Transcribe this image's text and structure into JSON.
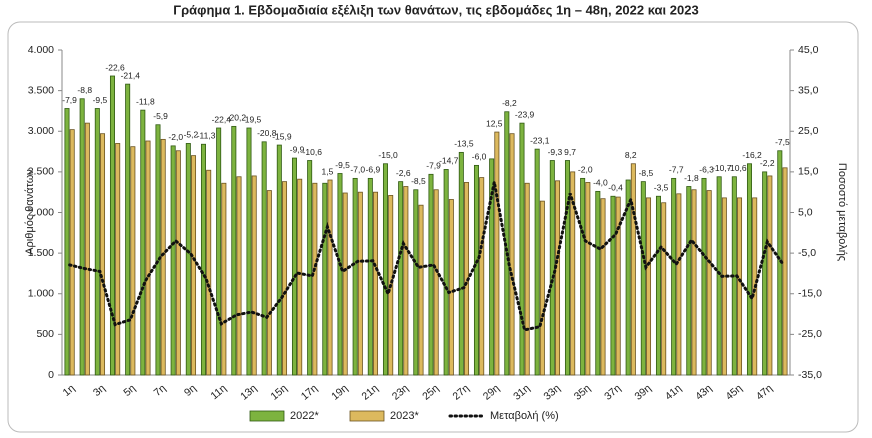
{
  "chart_data": {
    "type": "bar",
    "title": "Γράφημα 1.  Εβδομαδιαία εξέλιξη των θανάτων, τις εβδομάδες 1η – 48η, 2022 και 2023",
    "y_label": "Αριθμός θανάτων",
    "y2_label": "Ποσοστό μεταβολής",
    "categories": [
      "1η",
      null,
      "3η",
      null,
      "5η",
      null,
      "7η",
      null,
      "9η",
      null,
      "11η",
      null,
      "13η",
      null,
      "15η",
      null,
      "17η",
      null,
      "19η",
      null,
      "21η",
      null,
      "23η",
      null,
      "25η",
      null,
      "27η",
      null,
      "29η",
      null,
      "31η",
      null,
      "33η",
      null,
      "35η",
      null,
      "37η",
      null,
      "39η",
      null,
      "41η",
      null,
      "43η",
      null,
      "45η",
      null,
      "47η",
      null
    ],
    "series": [
      {
        "name": "2022*",
        "color": "#7db33f",
        "stroke": "#2f5a12",
        "values": [
          3280,
          3400,
          3280,
          3680,
          3580,
          3260,
          3080,
          2820,
          2850,
          2840,
          3040,
          3060,
          3040,
          2870,
          2830,
          2670,
          2640,
          2360,
          2480,
          2420,
          2420,
          2600,
          2380,
          2280,
          2470,
          2530,
          2740,
          2580,
          2660,
          3240,
          3100,
          2780,
          2640,
          2640,
          2420,
          2260,
          2200,
          2400,
          2380,
          2200,
          2420,
          2320,
          2420,
          2440,
          2440,
          2600,
          2500,
          2760
        ]
      },
      {
        "name": "2023*",
        "color": "#dcb95e",
        "stroke": "#6b5320",
        "values": [
          3020,
          3100,
          2970,
          2850,
          2810,
          2880,
          2900,
          2760,
          2700,
          2520,
          2360,
          2440,
          2450,
          2270,
          2380,
          2410,
          2360,
          2400,
          2240,
          2250,
          2250,
          2210,
          2320,
          2090,
          2280,
          2160,
          2370,
          2430,
          2990,
          2970,
          2360,
          2140,
          2390,
          2500,
          2370,
          2170,
          2190,
          2600,
          2180,
          2120,
          2230,
          2280,
          2270,
          2180,
          2180,
          2180,
          2450,
          2550
        ]
      },
      {
        "name": "Μεταβολή (%)",
        "color": "#111111",
        "axis": "y2",
        "type": "line",
        "values": [
          -7.9,
          -8.8,
          -9.5,
          -22.6,
          -21.4,
          -11.8,
          -5.9,
          -2.0,
          -5.2,
          -11.3,
          -22.4,
          -20.2,
          -19.5,
          -20.8,
          -15.9,
          -9.9,
          -10.6,
          1.5,
          -9.5,
          -7.0,
          -6.9,
          -15.0,
          -2.6,
          -8.5,
          -7.9,
          -14.7,
          -13.5,
          -6.0,
          12.5,
          -8.2,
          -23.9,
          -23.1,
          -9.3,
          9.7,
          -2.0,
          -4.0,
          -0.4,
          8.2,
          -8.5,
          -3.5,
          -7.7,
          -1.8,
          -6.3,
          -10.7,
          -10.6,
          -16.2,
          -2.2,
          -7.5
        ],
        "value_labels": [
          "-7,9",
          "-8,8",
          "-9,5",
          "-22,6",
          "-21,4",
          "-11,8",
          "-5,9",
          "-2,0",
          "-5,2",
          "-11,3",
          "-22,4",
          "-20,2",
          "-19,5",
          "-20,8",
          "-15,9",
          "-9,9",
          "-10,6",
          "1,5",
          "-9,5",
          "-7,0",
          "-6,9",
          "-15,0",
          "-2,6",
          "-8,5",
          "-7,9",
          "-14,7",
          "-13,5",
          "-6,0",
          "12,5",
          "-8,2",
          "-23,9",
          "-23,1",
          "-9,3",
          "9,7",
          "-2,0",
          "-4,0",
          "-0,4",
          "8,2",
          "-8,5",
          "-3,5",
          "-7,7",
          "-1,8",
          "-6,3",
          "-10,7",
          "-10,6",
          "-16,2",
          "-2,2",
          "-7,5"
        ]
      }
    ],
    "ylim": [
      0,
      4000
    ],
    "yticks": [
      0,
      {
        "value": 500,
        "label": "500"
      },
      {
        "value": 1000,
        "label": "1.000"
      },
      {
        "value": 1500,
        "label": "1.500"
      },
      {
        "value": 2000,
        "label": "2.000"
      },
      {
        "value": 2500,
        "label": "2.500"
      },
      {
        "value": 3000,
        "label": "3.000"
      },
      {
        "value": 3500,
        "label": "3.500"
      },
      {
        "value": 4000,
        "label": "4.000"
      }
    ],
    "y2lim": [
      -35,
      45
    ],
    "y2ticks": [
      {
        "value": -35,
        "label": "-35,0"
      },
      {
        "value": -25,
        "label": "-25,0"
      },
      {
        "value": -15,
        "label": "-15,0"
      },
      {
        "value": -5,
        "label": "-5,0"
      },
      {
        "value": 5,
        "label": "5,0"
      },
      {
        "value": 15,
        "label": "15,0"
      },
      {
        "value": 25,
        "label": "25,0"
      },
      {
        "value": 35,
        "label": "35,0"
      },
      {
        "value": 45,
        "label": "45,0"
      }
    ],
    "legend": "bottom"
  }
}
